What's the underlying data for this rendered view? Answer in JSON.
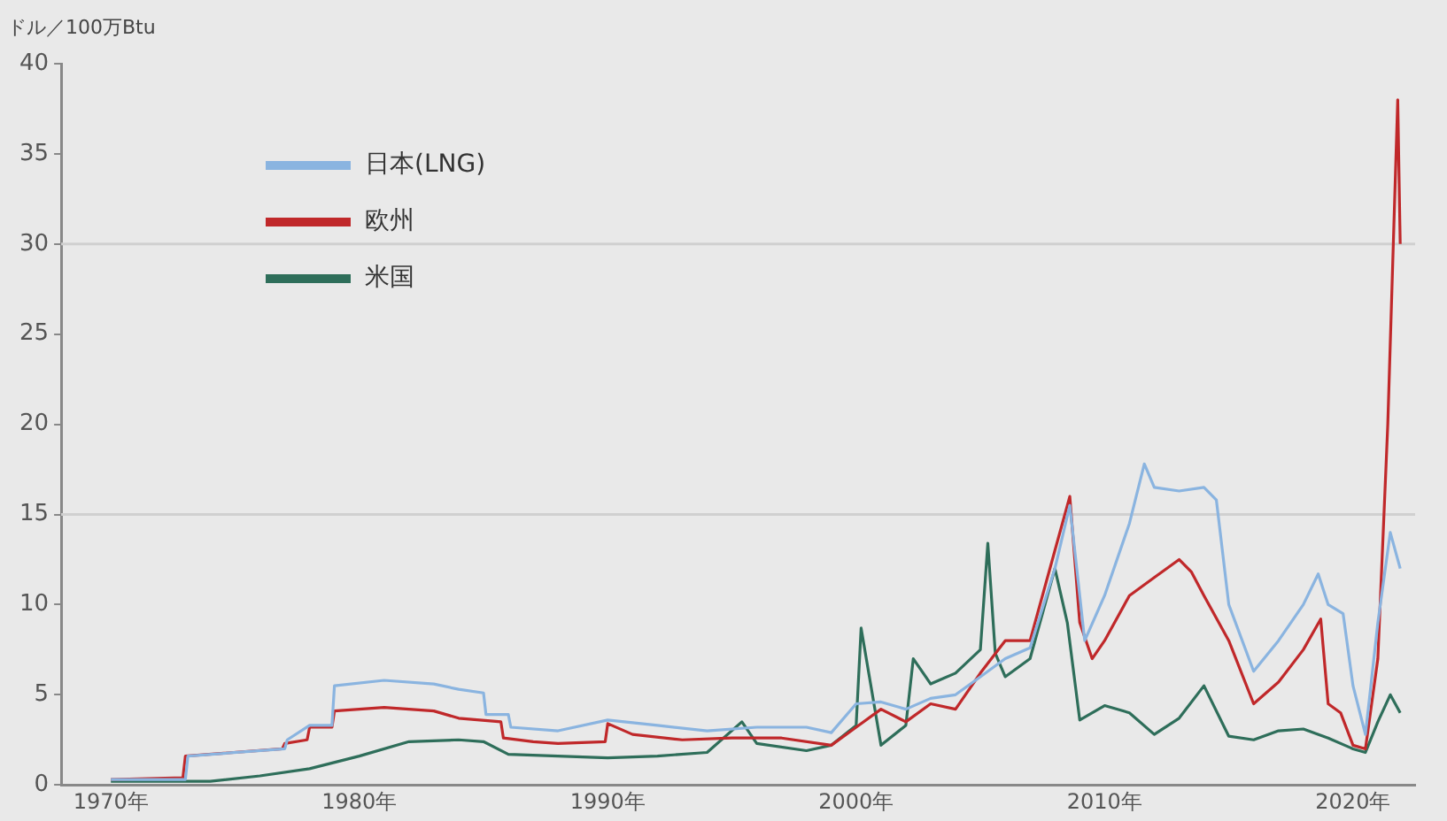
{
  "chart_data": {
    "type": "line",
    "ylabel": "ドル／100万Btu",
    "xlim": [
      1968,
      2022.5
    ],
    "xticks": [
      {
        "value": 1970,
        "label": "1970年"
      },
      {
        "value": 1980,
        "label": "1980年"
      },
      {
        "value": 1990,
        "label": "1990年"
      },
      {
        "value": 2000,
        "label": "2000年"
      },
      {
        "value": 2010,
        "label": "2010年"
      },
      {
        "value": 2020,
        "label": "2020年"
      }
    ],
    "ylim": [
      0,
      40
    ],
    "yticks": [
      0,
      5,
      10,
      15,
      20,
      25,
      30,
      35,
      40
    ],
    "grid": false,
    "legend": "top left",
    "marker": "none",
    "line_style": "solid",
    "ref_lines": [
      {
        "axis": "y",
        "value": 15,
        "color": "#d0d0d0"
      },
      {
        "axis": "y",
        "value": 30,
        "color": "#d0d0d0"
      }
    ],
    "series": [
      {
        "name": "日本(LNG)",
        "color": "#8ab4e0",
        "x": [
          1970,
          1973,
          1973.1,
          1977,
          1977.1,
          1978,
          1978.9,
          1979,
          1981,
          1983,
          1984,
          1985,
          1985.1,
          1986,
          1986.1,
          1988,
          1990,
          1992,
          1994,
          1996,
          1998,
          1999,
          2000,
          2001,
          2002,
          2003,
          2004,
          2005,
          2006,
          2007,
          2008,
          2008.6,
          2009.2,
          2010,
          2011,
          2011.6,
          2012,
          2013,
          2014,
          2014.5,
          2015,
          2016,
          2017,
          2018,
          2018.6,
          2019,
          2019.6,
          2020,
          2020.5,
          2021,
          2021.5,
          2021.9
        ],
        "values": [
          0.3,
          0.3,
          1.6,
          2.0,
          2.5,
          3.3,
          3.3,
          5.5,
          5.8,
          5.6,
          5.3,
          5.1,
          3.9,
          3.9,
          3.2,
          3.0,
          3.6,
          3.3,
          3.0,
          3.2,
          3.2,
          2.9,
          4.5,
          4.6,
          4.2,
          4.8,
          5.0,
          6.0,
          7.0,
          7.6,
          12,
          15.5,
          8,
          10.5,
          14.5,
          17.8,
          16.5,
          16.3,
          16.5,
          15.8,
          10,
          6.3,
          8,
          10,
          11.7,
          10,
          9.5,
          5.5,
          2.8,
          9,
          14,
          12
        ]
      },
      {
        "name": "欧州",
        "color": "#c0282a",
        "x": [
          1970,
          1972.9,
          1973,
          1976.9,
          1977,
          1977.9,
          1978,
          1978.9,
          1979,
          1981,
          1983,
          1984,
          1985.7,
          1985.8,
          1987,
          1988,
          1989.9,
          1990,
          1991,
          1993,
          1995,
          1997,
          1999,
          2000,
          2001,
          2002,
          2003,
          2004,
          2005,
          2006,
          2007,
          2008,
          2008.6,
          2009,
          2009.5,
          2010,
          2011,
          2012,
          2013,
          2013.5,
          2014,
          2015,
          2016,
          2017,
          2018,
          2018.7,
          2019,
          2019.5,
          2020,
          2020.5,
          2021,
          2021.4,
          2021.6,
          2021.8,
          2021.9
        ],
        "values": [
          0.3,
          0.4,
          1.6,
          2.0,
          2.3,
          2.5,
          3.2,
          3.2,
          4.1,
          4.3,
          4.1,
          3.7,
          3.5,
          2.6,
          2.4,
          2.3,
          2.4,
          3.4,
          2.8,
          2.5,
          2.6,
          2.6,
          2.2,
          3.2,
          4.2,
          3.5,
          4.5,
          4.2,
          6.2,
          8,
          8,
          13,
          16,
          9,
          7,
          8,
          10.5,
          11.5,
          12.5,
          11.8,
          10.5,
          8,
          4.5,
          5.7,
          7.5,
          9.2,
          4.5,
          4.0,
          2.2,
          2.0,
          7,
          20,
          29,
          38,
          30
        ]
      },
      {
        "name": "米国",
        "color": "#2e6e5a",
        "x": [
          1970,
          1974,
          1976,
          1978,
          1980,
          1982,
          1984,
          1985,
          1986,
          1988,
          1990,
          1992,
          1994,
          1995.4,
          1996,
          1998,
          1999,
          2000,
          2000.2,
          2001,
          2002,
          2002.3,
          2003,
          2004,
          2005,
          2005.3,
          2005.6,
          2006,
          2007,
          2008,
          2008.5,
          2009,
          2010,
          2011,
          2012,
          2013,
          2014,
          2015,
          2016,
          2017,
          2018,
          2019,
          2020,
          2020.5,
          2021,
          2021.5,
          2021.9
        ],
        "values": [
          0.2,
          0.2,
          0.5,
          0.9,
          1.6,
          2.4,
          2.5,
          2.4,
          1.7,
          1.6,
          1.5,
          1.6,
          1.8,
          3.5,
          2.3,
          1.9,
          2.2,
          3.3,
          8.7,
          2.2,
          3.3,
          7.0,
          5.6,
          6.2,
          7.5,
          13.4,
          7.3,
          6.0,
          7.0,
          12,
          9,
          3.6,
          4.4,
          4.0,
          2.8,
          3.7,
          5.5,
          2.7,
          2.5,
          3.0,
          3.1,
          2.6,
          2.0,
          1.8,
          3.5,
          5.0,
          4.0
        ]
      }
    ]
  }
}
